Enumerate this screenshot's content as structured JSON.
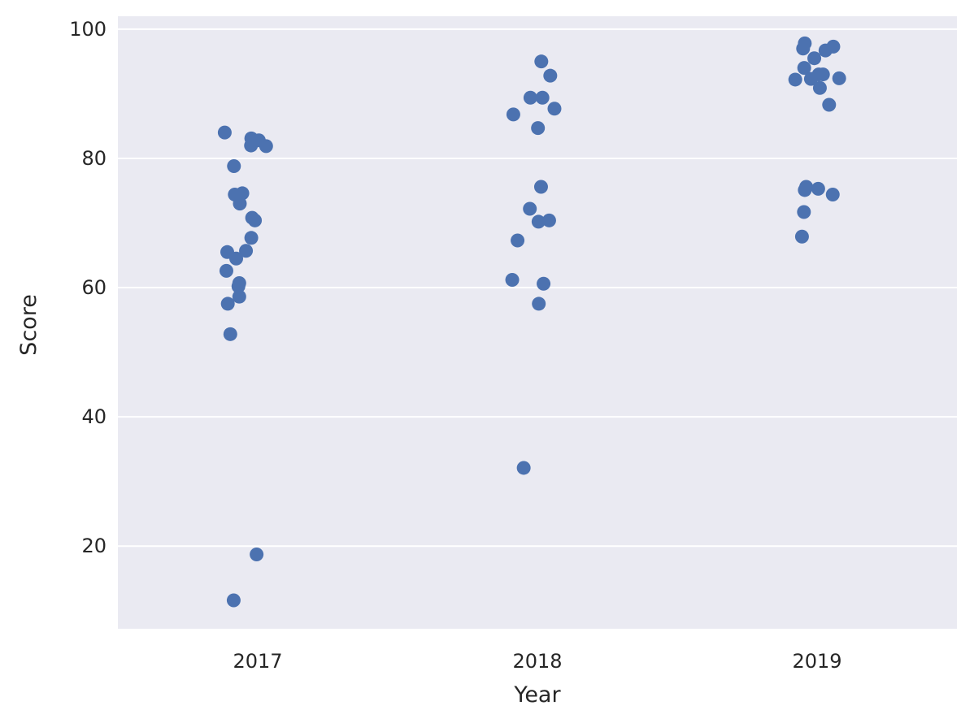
{
  "chart_data": {
    "type": "scatter",
    "title": "",
    "xlabel": "Year",
    "ylabel": "Score",
    "categories": [
      "2017",
      "2018",
      "2019"
    ],
    "ylim": [
      7.2,
      102
    ],
    "yticks": [
      20,
      40,
      60,
      80,
      100
    ],
    "grid": true,
    "legend": "none",
    "colors": {
      "background": "#eaeaf2",
      "point": "#4c72b0",
      "grid": "#ffffff"
    },
    "series": [
      {
        "category": "2017",
        "points": [
          {
            "offset": -0.118,
            "y": 84.0
          },
          {
            "offset": -0.085,
            "y": 78.8
          },
          {
            "offset": -0.082,
            "y": 74.4
          },
          {
            "offset": -0.055,
            "y": 74.6
          },
          {
            "offset": -0.064,
            "y": 73.0
          },
          {
            "offset": -0.023,
            "y": 83.1
          },
          {
            "offset": -0.024,
            "y": 82.0
          },
          {
            "offset": 0.004,
            "y": 82.8
          },
          {
            "offset": 0.03,
            "y": 81.9
          },
          {
            "offset": -0.02,
            "y": 70.8
          },
          {
            "offset": -0.01,
            "y": 70.4
          },
          {
            "offset": -0.023,
            "y": 67.7
          },
          {
            "offset": -0.109,
            "y": 65.5
          },
          {
            "offset": -0.042,
            "y": 65.7
          },
          {
            "offset": -0.077,
            "y": 64.5
          },
          {
            "offset": -0.112,
            "y": 62.6
          },
          {
            "offset": -0.066,
            "y": 60.7
          },
          {
            "offset": -0.069,
            "y": 60.2
          },
          {
            "offset": -0.066,
            "y": 58.6
          },
          {
            "offset": -0.107,
            "y": 57.5
          },
          {
            "offset": -0.098,
            "y": 52.8
          },
          {
            "offset": -0.004,
            "y": 18.7
          },
          {
            "offset": -0.086,
            "y": 11.6
          }
        ]
      },
      {
        "category": "2018",
        "points": [
          {
            "offset": 0.014,
            "y": 95.0
          },
          {
            "offset": 0.046,
            "y": 92.8
          },
          {
            "offset": -0.025,
            "y": 89.4
          },
          {
            "offset": 0.018,
            "y": 89.4
          },
          {
            "offset": 0.061,
            "y": 87.7
          },
          {
            "offset": -0.086,
            "y": 86.8
          },
          {
            "offset": 0.002,
            "y": 84.7
          },
          {
            "offset": 0.013,
            "y": 75.6
          },
          {
            "offset": -0.027,
            "y": 72.2
          },
          {
            "offset": 0.004,
            "y": 70.2
          },
          {
            "offset": 0.042,
            "y": 70.4
          },
          {
            "offset": -0.071,
            "y": 67.3
          },
          {
            "offset": -0.09,
            "y": 61.2
          },
          {
            "offset": 0.022,
            "y": 60.6
          },
          {
            "offset": 0.005,
            "y": 57.5
          },
          {
            "offset": -0.049,
            "y": 32.1
          }
        ]
      },
      {
        "category": "2019",
        "points": [
          {
            "offset": -0.044,
            "y": 97.8
          },
          {
            "offset": -0.05,
            "y": 97.0
          },
          {
            "offset": 0.058,
            "y": 97.3
          },
          {
            "offset": 0.03,
            "y": 96.7
          },
          {
            "offset": -0.01,
            "y": 95.5
          },
          {
            "offset": -0.046,
            "y": 94.0
          },
          {
            "offset": -0.022,
            "y": 92.3
          },
          {
            "offset": -0.078,
            "y": 92.2
          },
          {
            "offset": 0.006,
            "y": 93.0
          },
          {
            "offset": 0.021,
            "y": 93.0
          },
          {
            "offset": 0.079,
            "y": 92.4
          },
          {
            "offset": 0.01,
            "y": 90.9
          },
          {
            "offset": 0.043,
            "y": 88.3
          },
          {
            "offset": -0.039,
            "y": 75.6
          },
          {
            "offset": -0.044,
            "y": 75.1
          },
          {
            "offset": 0.004,
            "y": 75.3
          },
          {
            "offset": 0.056,
            "y": 74.4
          },
          {
            "offset": -0.047,
            "y": 71.7
          },
          {
            "offset": -0.054,
            "y": 67.9
          }
        ]
      }
    ]
  }
}
